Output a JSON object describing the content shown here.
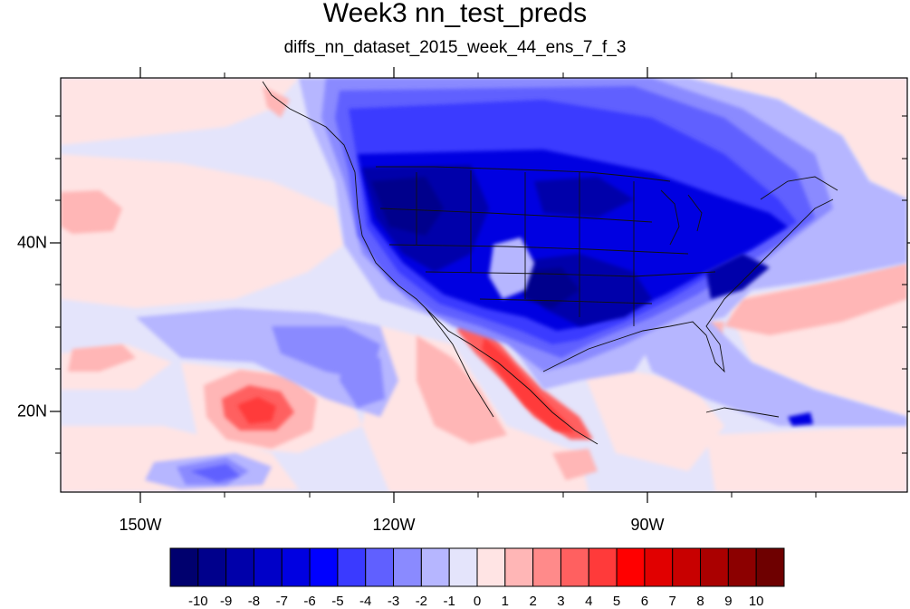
{
  "title": "Week3 nn_test_preds",
  "subtitle": "diffs_nn_dataset_2015_week_44_ens_7_f_3",
  "axes": {
    "lon_labels": [
      {
        "lon": -150,
        "label": "150W"
      },
      {
        "lon": -120,
        "label": "120W"
      },
      {
        "lon": -90,
        "label": "90W"
      }
    ],
    "lat_labels": [
      {
        "lat": 40,
        "label": "40N"
      },
      {
        "lat": 20,
        "label": "20N"
      }
    ],
    "lon_range": [
      -160,
      -60
    ],
    "lat_range": [
      10,
      60
    ]
  },
  "colorbar": {
    "levels": [
      "-10",
      "-9",
      "-8",
      "-7",
      "-6",
      "-5",
      "-4",
      "-3",
      "-2",
      "-1",
      "0",
      "1",
      "2",
      "3",
      "4",
      "5",
      "6",
      "7",
      "8",
      "9",
      "10"
    ],
    "colors": [
      "#00006e",
      "#00008c",
      "#0000aa",
      "#0000c8",
      "#0000e1",
      "#0000ff",
      "#3a3aff",
      "#6060ff",
      "#8a8aff",
      "#b6b6ff",
      "#e4e4fb",
      "#ffe4e4",
      "#ffb6b6",
      "#ff8a8a",
      "#ff6060",
      "#ff3a3a",
      "#ff0000",
      "#e10000",
      "#c80000",
      "#aa0000",
      "#8c0000",
      "#6e0000"
    ]
  }
}
